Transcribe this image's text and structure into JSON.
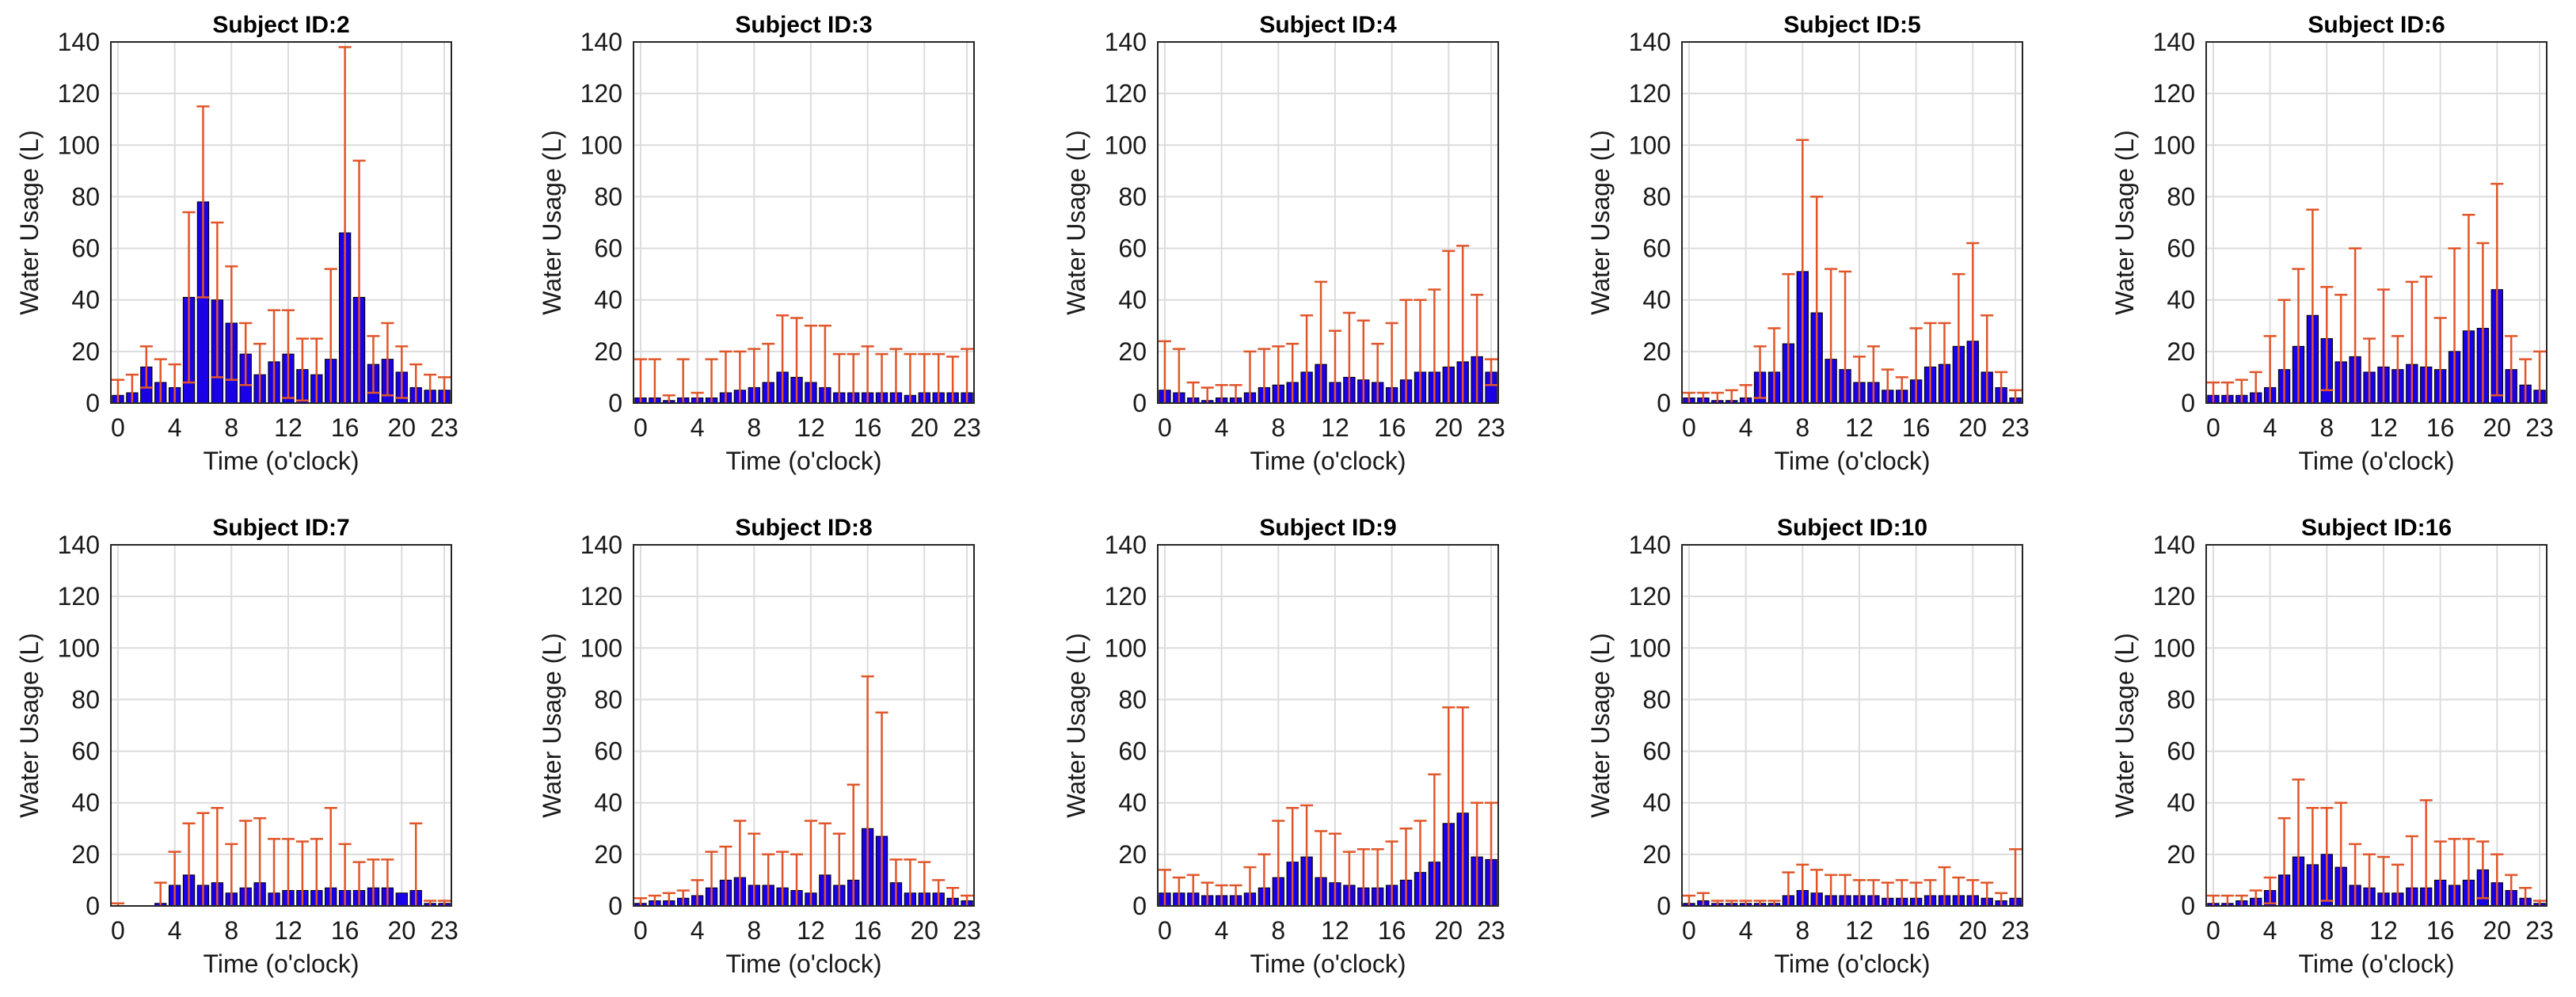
{
  "colors": {
    "bar": "#1a00e6",
    "bar_edge": "#000000",
    "errorbar": "#e0562a",
    "grid": "#dcdcdc",
    "axis": "#262626"
  },
  "chart_data": [
    {
      "type": "bar",
      "title": "Subject ID:2",
      "xlabel": "Time (o'clock)",
      "ylabel": "Water Usage (L)",
      "ylim": [
        0,
        140
      ],
      "yticks": [
        "0",
        "20",
        "40",
        "60",
        "80",
        "100",
        "120",
        "140"
      ],
      "xticks": [
        "0",
        "4",
        "8",
        "12",
        "16",
        "20",
        "23"
      ],
      "hours": [
        0,
        1,
        2,
        3,
        4,
        5,
        6,
        7,
        8,
        9,
        10,
        11,
        12,
        13,
        14,
        15,
        16,
        17,
        18,
        19,
        20,
        21,
        22,
        23
      ],
      "values": [
        3,
        4,
        14,
        8,
        6,
        41,
        78,
        40,
        31,
        19,
        11,
        16,
        19,
        13,
        11,
        17,
        66,
        41,
        15,
        17,
        12,
        6,
        5,
        5
      ],
      "errors": [
        6,
        7,
        8,
        9,
        9,
        33,
        37,
        30,
        22,
        12,
        12,
        20,
        17,
        12,
        14,
        35,
        72,
        53,
        11,
        14,
        10,
        9,
        6,
        5
      ]
    },
    {
      "type": "bar",
      "title": "Subject ID:3",
      "xlabel": "Time (o'clock)",
      "ylabel": "Water Usage (L)",
      "ylim": [
        0,
        140
      ],
      "yticks": [
        "0",
        "20",
        "40",
        "60",
        "80",
        "100",
        "120",
        "140"
      ],
      "xticks": [
        "0",
        "4",
        "8",
        "12",
        "16",
        "20",
        "23"
      ],
      "hours": [
        0,
        1,
        2,
        3,
        4,
        5,
        6,
        7,
        8,
        9,
        10,
        11,
        12,
        13,
        14,
        15,
        16,
        17,
        18,
        19,
        20,
        21,
        22,
        23
      ],
      "values": [
        2,
        2,
        1,
        2,
        2,
        2,
        4,
        5,
        6,
        8,
        12,
        10,
        8,
        6,
        4,
        4,
        4,
        4,
        4,
        3,
        4,
        4,
        4,
        4
      ],
      "errors": [
        15,
        15,
        2,
        15,
        2,
        15,
        16,
        15,
        15,
        15,
        22,
        23,
        22,
        24,
        15,
        15,
        18,
        15,
        17,
        16,
        15,
        15,
        14,
        17
      ]
    },
    {
      "type": "bar",
      "title": "Subject ID:4",
      "xlabel": "Time (o'clock)",
      "ylabel": "Water Usage (L)",
      "ylim": [
        0,
        140
      ],
      "yticks": [
        "0",
        "20",
        "40",
        "60",
        "80",
        "100",
        "120",
        "140"
      ],
      "xticks": [
        "0",
        "4",
        "8",
        "12",
        "16",
        "20",
        "23"
      ],
      "hours": [
        0,
        1,
        2,
        3,
        4,
        5,
        6,
        7,
        8,
        9,
        10,
        11,
        12,
        13,
        14,
        15,
        16,
        17,
        18,
        19,
        20,
        21,
        22,
        23
      ],
      "values": [
        5,
        4,
        2,
        1,
        2,
        2,
        4,
        6,
        7,
        8,
        12,
        15,
        8,
        10,
        9,
        8,
        6,
        9,
        12,
        12,
        14,
        16,
        18,
        12
      ],
      "errors": [
        19,
        17,
        6,
        5,
        5,
        5,
        16,
        15,
        15,
        15,
        22,
        32,
        20,
        25,
        23,
        15,
        25,
        31,
        28,
        32,
        45,
        45,
        24,
        5
      ]
    },
    {
      "type": "bar",
      "title": "Subject ID:5",
      "xlabel": "Time (o'clock)",
      "ylabel": "Water Usage (L)",
      "ylim": [
        0,
        140
      ],
      "yticks": [
        "0",
        "20",
        "40",
        "60",
        "80",
        "100",
        "120",
        "140"
      ],
      "xticks": [
        "0",
        "4",
        "8",
        "12",
        "16",
        "20",
        "23"
      ],
      "hours": [
        0,
        1,
        2,
        3,
        4,
        5,
        6,
        7,
        8,
        9,
        10,
        11,
        12,
        13,
        14,
        15,
        16,
        17,
        18,
        19,
        20,
        21,
        22,
        23
      ],
      "values": [
        2,
        2,
        1,
        1,
        2,
        12,
        12,
        23,
        51,
        35,
        17,
        13,
        8,
        8,
        5,
        5,
        9,
        14,
        15,
        22,
        24,
        12,
        6,
        2
      ],
      "errors": [
        2,
        2,
        3,
        4,
        5,
        10,
        17,
        27,
        51,
        45,
        35,
        38,
        10,
        14,
        8,
        5,
        20,
        17,
        16,
        28,
        38,
        22,
        6,
        3
      ]
    },
    {
      "type": "bar",
      "title": "Subject ID:6",
      "xlabel": "Time (o'clock)",
      "ylabel": "Water Usage (L)",
      "ylim": [
        0,
        140
      ],
      "yticks": [
        "0",
        "20",
        "40",
        "60",
        "80",
        "100",
        "120",
        "140"
      ],
      "xticks": [
        "0",
        "4",
        "8",
        "12",
        "16",
        "20",
        "23"
      ],
      "hours": [
        0,
        1,
        2,
        3,
        4,
        5,
        6,
        7,
        8,
        9,
        10,
        11,
        12,
        13,
        14,
        15,
        16,
        17,
        18,
        19,
        20,
        21,
        22,
        23
      ],
      "values": [
        3,
        3,
        3,
        4,
        6,
        13,
        22,
        34,
        25,
        16,
        18,
        12,
        14,
        13,
        15,
        14,
        13,
        20,
        28,
        29,
        44,
        13,
        7,
        5
      ],
      "errors": [
        5,
        5,
        6,
        8,
        20,
        27,
        30,
        41,
        20,
        26,
        42,
        13,
        30,
        13,
        32,
        35,
        20,
        40,
        45,
        33,
        41,
        13,
        10,
        15
      ]
    },
    {
      "type": "bar",
      "title": "Subject ID:7",
      "xlabel": "Time (o'clock)",
      "ylabel": "Water Usage (L)",
      "ylim": [
        0,
        140
      ],
      "yticks": [
        "0",
        "20",
        "40",
        "60",
        "80",
        "100",
        "120",
        "140"
      ],
      "xticks": [
        "0",
        "4",
        "8",
        "12",
        "16",
        "20",
        "23"
      ],
      "hours": [
        0,
        1,
        2,
        3,
        4,
        5,
        6,
        7,
        8,
        9,
        10,
        11,
        12,
        13,
        14,
        15,
        16,
        17,
        18,
        19,
        20,
        21,
        22,
        23
      ],
      "values": [
        0,
        0,
        0,
        1,
        8,
        12,
        8,
        9,
        5,
        7,
        9,
        5,
        6,
        6,
        6,
        7,
        6,
        6,
        7,
        7,
        5,
        6,
        1,
        1
      ],
      "errors": [
        1,
        0,
        0,
        8,
        13,
        20,
        28,
        29,
        19,
        26,
        25,
        21,
        20,
        19,
        20,
        31,
        18,
        11,
        11,
        11,
        0,
        26,
        1,
        1
      ]
    },
    {
      "type": "bar",
      "title": "Subject ID:8",
      "xlabel": "Time (o'clock)",
      "ylabel": "Water Usage (L)",
      "ylim": [
        0,
        140
      ],
      "yticks": [
        "0",
        "20",
        "40",
        "60",
        "80",
        "100",
        "120",
        "140"
      ],
      "xticks": [
        "0",
        "4",
        "8",
        "12",
        "16",
        "20",
        "23"
      ],
      "hours": [
        0,
        1,
        2,
        3,
        4,
        5,
        6,
        7,
        8,
        9,
        10,
        11,
        12,
        13,
        14,
        15,
        16,
        17,
        18,
        19,
        20,
        21,
        22,
        23
      ],
      "values": [
        1,
        2,
        2,
        3,
        4,
        7,
        10,
        11,
        8,
        8,
        7,
        6,
        5,
        12,
        8,
        10,
        30,
        27,
        9,
        5,
        5,
        5,
        3,
        2
      ],
      "errors": [
        2,
        2,
        3,
        3,
        6,
        14,
        13,
        22,
        20,
        12,
        14,
        14,
        28,
        20,
        20,
        37,
        59,
        48,
        9,
        13,
        12,
        5,
        4,
        2
      ]
    },
    {
      "type": "bar",
      "title": "Subject ID:9",
      "xlabel": "Time (o'clock)",
      "ylabel": "Water Usage (L)",
      "ylim": [
        0,
        140
      ],
      "yticks": [
        "0",
        "20",
        "40",
        "60",
        "80",
        "100",
        "120",
        "140"
      ],
      "xticks": [
        "0",
        "4",
        "8",
        "12",
        "16",
        "20",
        "23"
      ],
      "hours": [
        0,
        1,
        2,
        3,
        4,
        5,
        6,
        7,
        8,
        9,
        10,
        11,
        12,
        13,
        14,
        15,
        16,
        17,
        18,
        19,
        20,
        21,
        22,
        23
      ],
      "values": [
        5,
        5,
        5,
        4,
        4,
        4,
        5,
        7,
        11,
        17,
        19,
        11,
        9,
        8,
        7,
        7,
        8,
        10,
        13,
        17,
        32,
        36,
        19,
        18
      ],
      "errors": [
        9,
        6,
        7,
        5,
        4,
        4,
        10,
        13,
        22,
        21,
        20,
        18,
        19,
        13,
        15,
        15,
        17,
        20,
        20,
        34,
        45,
        41,
        21,
        22
      ]
    },
    {
      "type": "bar",
      "title": "Subject ID:10",
      "xlabel": "Time (o'clock)",
      "ylabel": "Water Usage (L)",
      "ylim": [
        0,
        140
      ],
      "yticks": [
        "0",
        "20",
        "40",
        "60",
        "80",
        "100",
        "120",
        "140"
      ],
      "xticks": [
        "0",
        "4",
        "8",
        "12",
        "16",
        "20",
        "23"
      ],
      "hours": [
        0,
        1,
        2,
        3,
        4,
        5,
        6,
        7,
        8,
        9,
        10,
        11,
        12,
        13,
        14,
        15,
        16,
        17,
        18,
        19,
        20,
        21,
        22,
        23
      ],
      "values": [
        1,
        2,
        1,
        1,
        1,
        1,
        1,
        4,
        6,
        5,
        4,
        4,
        4,
        4,
        3,
        3,
        3,
        4,
        4,
        4,
        4,
        3,
        2,
        3
      ],
      "errors": [
        3,
        3,
        1,
        1,
        1,
        1,
        1,
        9,
        10,
        9,
        8,
        8,
        6,
        6,
        6,
        7,
        6,
        6,
        11,
        7,
        6,
        6,
        3,
        19
      ]
    },
    {
      "type": "bar",
      "title": "Subject ID:16",
      "xlabel": "Time (o'clock)",
      "ylabel": "Water Usage (L)",
      "ylim": [
        0,
        140
      ],
      "yticks": [
        "0",
        "20",
        "40",
        "60",
        "80",
        "100",
        "120",
        "140"
      ],
      "xticks": [
        "0",
        "4",
        "8",
        "12",
        "16",
        "20",
        "23"
      ],
      "hours": [
        0,
        1,
        2,
        3,
        4,
        5,
        6,
        7,
        8,
        9,
        10,
        11,
        12,
        13,
        14,
        15,
        16,
        17,
        18,
        19,
        20,
        21,
        22,
        23
      ],
      "values": [
        1,
        1,
        2,
        3,
        6,
        12,
        19,
        16,
        20,
        15,
        8,
        7,
        5,
        5,
        7,
        7,
        10,
        8,
        10,
        14,
        9,
        6,
        3,
        1
      ],
      "errors": [
        3,
        3,
        2,
        3,
        5,
        22,
        30,
        22,
        18,
        25,
        16,
        13,
        14,
        11,
        20,
        34,
        15,
        18,
        16,
        11,
        11,
        6,
        4,
        1
      ]
    }
  ]
}
